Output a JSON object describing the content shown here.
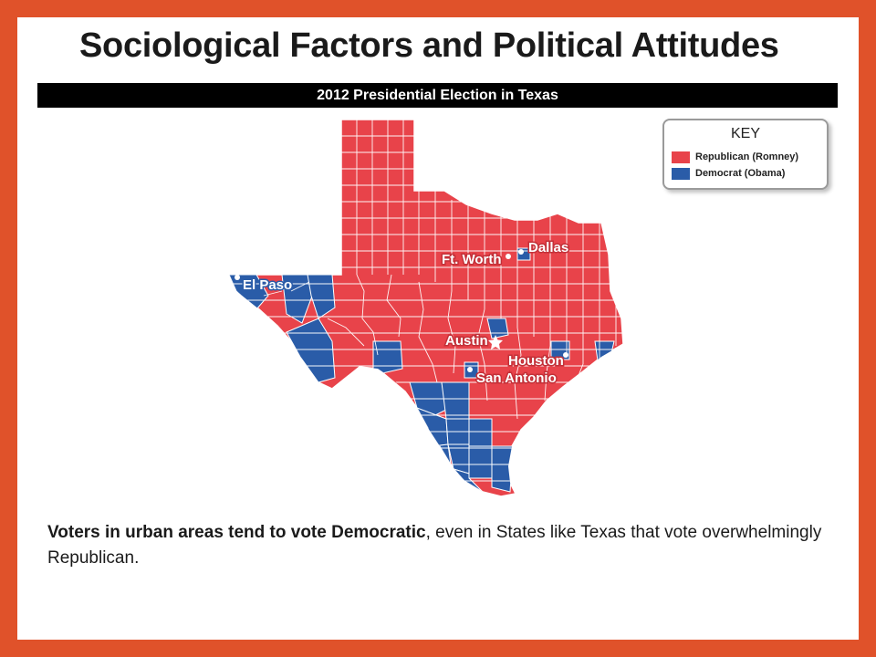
{
  "slide": {
    "title": "Sociological Factors and Political Attitudes",
    "banner": "2012 Presidential Election in Texas",
    "caption_bold": "Voters in urban areas tend to vote Democratic",
    "caption_rest": ", even in States like Texas that vote overwhelmingly Republican."
  },
  "key": {
    "title": "KEY",
    "items": [
      {
        "label": "Republican (Romney)",
        "color": "#e8434a"
      },
      {
        "label": "Democrat (Obama)",
        "color": "#2a5ca8"
      }
    ]
  },
  "map": {
    "state_color": "#e8434a",
    "democrat_color": "#2a5ca8",
    "cities": {
      "el_paso": "El Paso",
      "ft_worth": "Ft. Worth",
      "dallas": "Dallas",
      "austin": "Austin",
      "houston": "Houston",
      "san_antonio": "San Antonio"
    }
  },
  "colors": {
    "frame": "#e0522a",
    "republican": "#e8434a",
    "democrat": "#2a5ca8"
  }
}
